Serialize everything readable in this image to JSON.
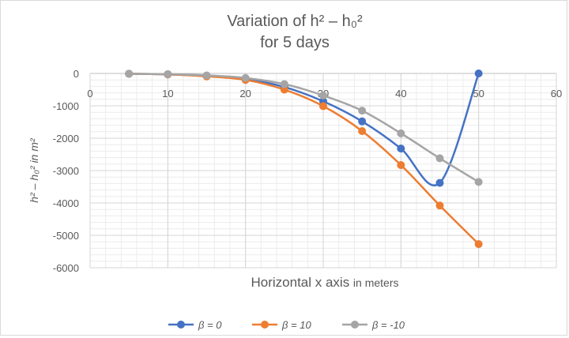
{
  "chart_data": {
    "type": "line",
    "title_line1": "Variation of h² – h₀²",
    "title_line2": "for 5 days",
    "xlabel_main": "Horizontal x axis",
    "xlabel_unit": "in meters",
    "ylabel": "h² – h₀² in m²",
    "xlim": [
      0,
      60
    ],
    "ylim": [
      -6000,
      0
    ],
    "xticks": [
      "0",
      "10",
      "20",
      "30",
      "40",
      "50",
      "60"
    ],
    "yticks": [
      "0",
      "-1000",
      "-2000",
      "-3000",
      "-4000",
      "-5000",
      "-6000"
    ],
    "grid": true,
    "legend_position": "bottom",
    "x": [
      5,
      10,
      15,
      20,
      25,
      30,
      35,
      40,
      45,
      50
    ],
    "series": [
      {
        "name": "β = 0",
        "color": "#4472c4",
        "values": [
          -10,
          -30,
          -80,
          -170,
          -420,
          -860,
          -1480,
          -2320,
          -3380,
          0
        ]
      },
      {
        "name": "β = 10",
        "color": "#ed7d31",
        "values": [
          -10,
          -30,
          -90,
          -200,
          -500,
          -1010,
          -1780,
          -2830,
          -4080,
          -5270
        ]
      },
      {
        "name": "β = -10",
        "color": "#a5a5a5",
        "values": [
          -10,
          -20,
          -60,
          -140,
          -330,
          -680,
          -1150,
          -1850,
          -2620,
          -3350
        ]
      }
    ]
  }
}
